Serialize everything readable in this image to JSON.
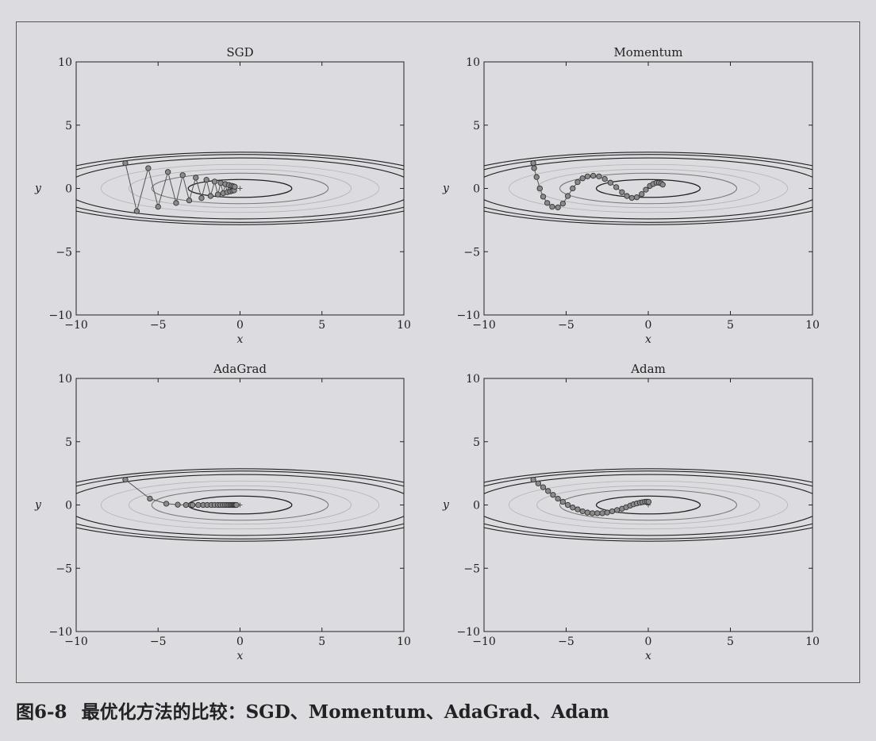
{
  "caption": {
    "number": "图6-8",
    "text": "最优化方法的比较：SGD、Momentum、AdaGrad、Adam"
  },
  "colors": {
    "background": "#dcdbe0",
    "path": "#555555",
    "marker_fill": "#8a8a8a",
    "marker_edge": "#333333",
    "contour_dark": "#222222",
    "contour_mid": "#777777",
    "contour_light": "#b4b4b4"
  },
  "chart_data": [
    {
      "type": "line",
      "title": "SGD",
      "xlabel": "x",
      "ylabel": "y",
      "xlim": [
        -10,
        10
      ],
      "ylim": [
        -10,
        10
      ],
      "xticks": [
        "−10",
        "−5",
        "0",
        "5",
        "10"
      ],
      "yticks": [
        "10",
        "5",
        "0",
        "−5",
        "−10"
      ],
      "minimum": [
        0,
        0
      ],
      "path": {
        "x": [
          -7.0,
          -6.3,
          -5.6,
          -5.0,
          -4.4,
          -3.9,
          -3.5,
          -3.1,
          -2.7,
          -2.35,
          -2.05,
          -1.8,
          -1.55,
          -1.35,
          -1.18,
          -1.03,
          -0.9,
          -0.78,
          -0.68,
          -0.6,
          -0.52,
          -0.46,
          -0.41,
          -0.36,
          -0.32
        ],
        "y": [
          2.0,
          -1.8,
          1.6,
          -1.45,
          1.3,
          -1.15,
          1.05,
          -0.95,
          0.85,
          -0.76,
          0.68,
          -0.6,
          0.54,
          -0.48,
          0.43,
          -0.38,
          0.34,
          -0.3,
          0.27,
          -0.24,
          0.21,
          -0.19,
          0.17,
          -0.15,
          0.13
        ]
      }
    },
    {
      "type": "line",
      "title": "Momentum",
      "xlabel": "x",
      "ylabel": "y",
      "xlim": [
        -10,
        10
      ],
      "ylim": [
        -10,
        10
      ],
      "xticks": [
        "−10",
        "−5",
        "0",
        "5",
        "10"
      ],
      "yticks": [
        "10",
        "5",
        "0",
        "−5",
        "−10"
      ],
      "minimum": [
        0,
        0
      ],
      "path": {
        "x": [
          -7.0,
          -6.95,
          -6.8,
          -6.6,
          -6.4,
          -6.15,
          -5.85,
          -5.5,
          -5.2,
          -4.9,
          -4.6,
          -4.3,
          -4.0,
          -3.7,
          -3.35,
          -3.0,
          -2.65,
          -2.3,
          -1.95,
          -1.6,
          -1.3,
          -1.0,
          -0.7,
          -0.4,
          -0.15,
          0.1,
          0.3,
          0.5,
          0.65,
          0.78,
          0.88
        ],
        "y": [
          2.0,
          1.6,
          0.9,
          0.0,
          -0.65,
          -1.15,
          -1.45,
          -1.5,
          -1.2,
          -0.6,
          0.0,
          0.5,
          0.8,
          0.95,
          1.0,
          0.95,
          0.75,
          0.45,
          0.1,
          -0.3,
          -0.6,
          -0.75,
          -0.7,
          -0.45,
          -0.1,
          0.2,
          0.35,
          0.45,
          0.45,
          0.4,
          0.3
        ]
      }
    },
    {
      "type": "line",
      "title": "AdaGrad",
      "xlabel": "x",
      "ylabel": "y",
      "xlim": [
        -10,
        10
      ],
      "ylim": [
        -10,
        10
      ],
      "xticks": [
        "−10",
        "−5",
        "0",
        "5",
        "10"
      ],
      "yticks": [
        "10",
        "5",
        "0",
        "−5",
        "−10"
      ],
      "minimum": [
        0,
        0
      ],
      "path": {
        "x": [
          -7.0,
          -5.5,
          -4.5,
          -3.8,
          -3.3,
          -2.9,
          -2.55,
          -2.25,
          -2.0,
          -1.75,
          -1.55,
          -1.35,
          -1.2,
          -1.05,
          -0.92,
          -0.8,
          -0.7,
          -0.6,
          -0.52,
          -0.45,
          -0.38,
          -0.32,
          -0.27,
          -0.22
        ],
        "y": [
          2.0,
          0.5,
          0.1,
          0.02,
          0.0,
          0.0,
          0.0,
          0.0,
          0.0,
          0.0,
          0.0,
          0.0,
          0.0,
          0.0,
          0.0,
          0.0,
          0.0,
          0.0,
          0.0,
          0.0,
          0.0,
          0.0,
          0.0,
          0.0
        ]
      }
    },
    {
      "type": "line",
      "title": "Adam",
      "xlabel": "x",
      "ylabel": "y",
      "xlim": [
        -10,
        10
      ],
      "ylim": [
        -10,
        10
      ],
      "xticks": [
        "−10",
        "−5",
        "0",
        "5",
        "10"
      ],
      "yticks": [
        "10",
        "5",
        "0",
        "−5",
        "−10"
      ],
      "minimum": [
        0,
        0
      ],
      "path": {
        "x": [
          -7.0,
          -6.7,
          -6.4,
          -6.1,
          -5.8,
          -5.5,
          -5.2,
          -4.9,
          -4.6,
          -4.3,
          -4.0,
          -3.7,
          -3.4,
          -3.1,
          -2.8,
          -2.5,
          -2.2,
          -1.9,
          -1.6,
          -1.35,
          -1.1,
          -0.9,
          -0.7,
          -0.5,
          -0.35,
          -0.2,
          -0.08,
          0.02
        ],
        "y": [
          2.0,
          1.7,
          1.4,
          1.1,
          0.8,
          0.5,
          0.25,
          0.0,
          -0.2,
          -0.35,
          -0.5,
          -0.6,
          -0.65,
          -0.65,
          -0.65,
          -0.6,
          -0.5,
          -0.4,
          -0.3,
          -0.18,
          -0.05,
          0.05,
          0.12,
          0.18,
          0.22,
          0.25,
          0.26,
          0.25
        ]
      }
    }
  ]
}
